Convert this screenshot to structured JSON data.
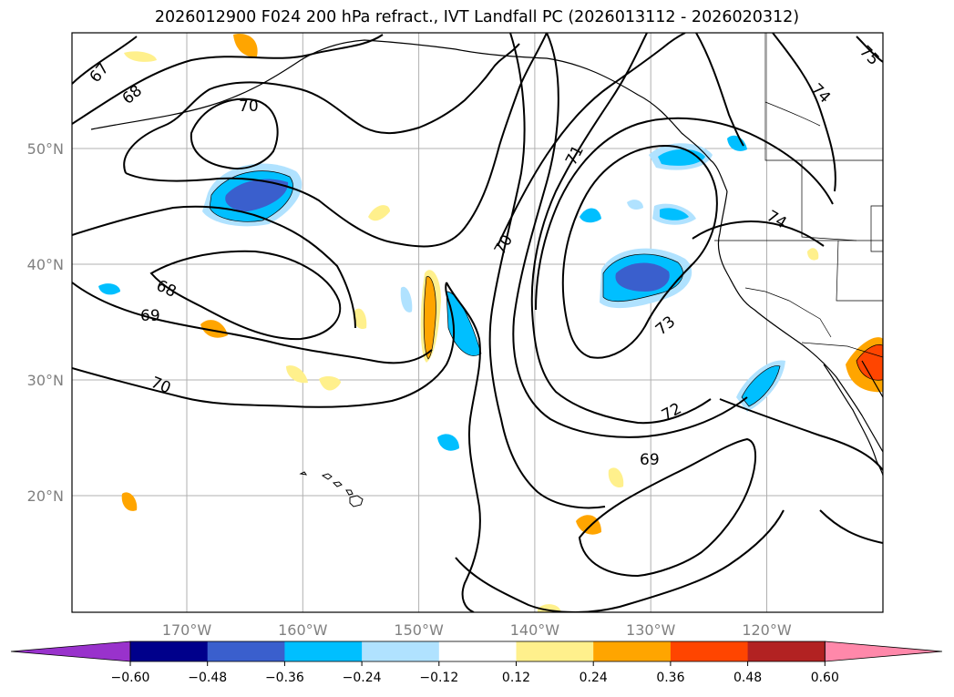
{
  "title": "2026012900 F024 200 hPa refract., IVT Landfall PC (2026013112 - 2026020312)",
  "map": {
    "lat_labels": [
      {
        "text": "50°N",
        "lat": 50
      },
      {
        "text": "40°N",
        "lat": 40
      },
      {
        "text": "30°N",
        "lat": 30
      },
      {
        "text": "20°N",
        "lat": 20
      }
    ],
    "lon_labels": [
      {
        "text": "170°W",
        "lon": -170
      },
      {
        "text": "160°W",
        "lon": -160
      },
      {
        "text": "150°W",
        "lon": -150
      },
      {
        "text": "140°W",
        "lon": -140
      },
      {
        "text": "130°W",
        "lon": -130
      },
      {
        "text": "120°W",
        "lon": -120
      }
    ],
    "contour_labels": [
      "67",
      "68",
      "70",
      "71",
      "70",
      "74",
      "75",
      "74",
      "68",
      "69",
      "73",
      "70",
      "72",
      "69"
    ],
    "grid": true
  },
  "colorbar": {
    "ticks": [
      "−0.60",
      "−0.48",
      "−0.36",
      "−0.24",
      "−0.12",
      "0.12",
      "0.24",
      "0.36",
      "0.48",
      "0.60"
    ],
    "colors": [
      "#9932cc",
      "#00008b",
      "#3a5fcd",
      "#00bfff",
      "#b0e2ff",
      "#ffffff",
      "#fff08c",
      "#ffa500",
      "#ff4500",
      "#b22222",
      "#ff88aa"
    ]
  }
}
